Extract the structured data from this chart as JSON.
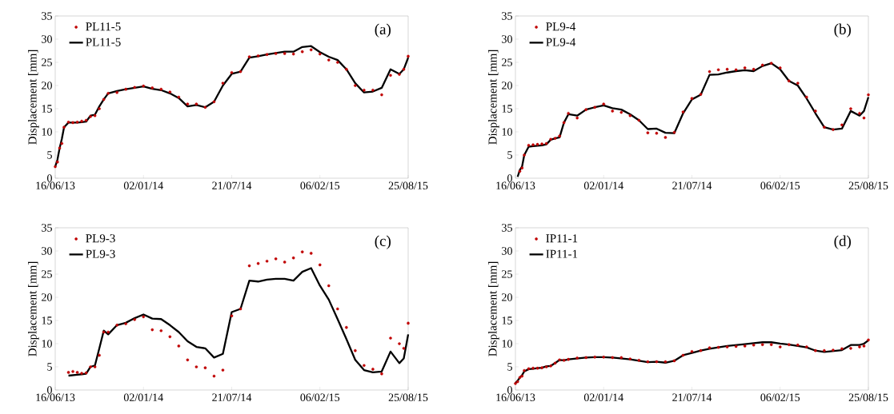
{
  "chart_data": [
    {
      "type": "line",
      "ylabel": "Displacement  [mm]",
      "annotations": [
        "(a)"
      ],
      "legend": "top left",
      "x": [
        "2013-06-16",
        "2013-06-21",
        "2013-06-26",
        "2013-07-01",
        "2013-07-06",
        "2013-07-16",
        "2013-07-26",
        "2013-08-05",
        "2013-08-15",
        "2013-08-25",
        "2013-09-04",
        "2013-09-14",
        "2013-09-24",
        "2013-10-04",
        "2013-10-14",
        "2013-11-03",
        "2013-11-23",
        "2013-12-13",
        "2014-01-02",
        "2014-01-22",
        "2014-02-11",
        "2014-03-03",
        "2014-03-23",
        "2014-04-12",
        "2014-05-02",
        "2014-05-22",
        "2014-06-11",
        "2014-07-01",
        "2014-07-21",
        "2014-08-10",
        "2014-08-30",
        "2014-09-19",
        "2014-10-09",
        "2014-10-29",
        "2014-11-18",
        "2014-12-08",
        "2014-12-28",
        "2015-01-17",
        "2015-02-06",
        "2015-02-26",
        "2015-03-18",
        "2015-04-07",
        "2015-04-27",
        "2015-05-17",
        "2015-06-06",
        "2015-06-26",
        "2015-07-16",
        "2015-08-05",
        "2015-08-15",
        "2015-08-25"
      ],
      "xlim": [
        "2013-06-16",
        "2015-08-25"
      ],
      "xticks": [
        {
          "value": "2013-06-16",
          "label": "16/06/13"
        },
        {
          "value": "2014-01-02",
          "label": "02/01/14"
        },
        {
          "value": "2014-07-21",
          "label": "21/07/14"
        },
        {
          "value": "2015-02-06",
          "label": "06/02/15"
        },
        {
          "value": "2015-08-25",
          "label": "25/08/15"
        }
      ],
      "ylim": [
        0,
        35
      ],
      "yticks": [
        0,
        5,
        10,
        15,
        20,
        25,
        30,
        35
      ],
      "series": [
        {
          "name": "PL11-5",
          "type": "scatter",
          "marker": "circle",
          "color": "#c00000",
          "values": [
            2.5,
            3.5,
            6.5,
            7.5,
            11,
            12.1,
            12,
            12.1,
            12.3,
            12.5,
            13.3,
            13.5,
            15,
            17,
            18.3,
            18.5,
            19.2,
            19.6,
            19.9,
            19.5,
            19.2,
            18.6,
            17.5,
            16,
            16,
            15.3,
            16.5,
            20.5,
            22.8,
            23,
            26.2,
            26.4,
            26.7,
            26.9,
            26.9,
            26.8,
            27.3,
            27.7,
            26.8,
            25.5,
            25,
            23.5,
            20,
            19,
            19,
            18,
            22.2,
            22.4,
            23.5,
            26.3
          ]
        },
        {
          "name": "PL11-5",
          "type": "line",
          "marker": "none",
          "line_style": "solid",
          "color": "#000000",
          "values": [
            2.5,
            4,
            6.5,
            8.5,
            11,
            12,
            12,
            12,
            12.1,
            12.2,
            13.5,
            13.7,
            15.5,
            17,
            18.3,
            18.8,
            19.2,
            19.5,
            19.8,
            19.3,
            19,
            18.3,
            17.3,
            15.5,
            15.8,
            15.3,
            16.5,
            20,
            22.5,
            23,
            26,
            26.3,
            26.7,
            27,
            27.3,
            27.3,
            28.3,
            28.5,
            27.2,
            26.2,
            25.5,
            23.5,
            20.5,
            18.5,
            18.7,
            19.5,
            23.5,
            22.5,
            23.5,
            26
          ]
        }
      ]
    },
    {
      "type": "line",
      "ylabel": "Displacement  [mm]",
      "annotations": [
        "(b)"
      ],
      "legend": "top left",
      "x": [
        "2013-06-21",
        "2013-06-26",
        "2013-07-01",
        "2013-07-06",
        "2013-07-16",
        "2013-07-26",
        "2013-08-05",
        "2013-08-15",
        "2013-08-25",
        "2013-09-04",
        "2013-09-14",
        "2013-09-24",
        "2013-10-04",
        "2013-10-14",
        "2013-11-03",
        "2013-11-23",
        "2013-12-13",
        "2014-01-02",
        "2014-01-22",
        "2014-02-11",
        "2014-03-03",
        "2014-03-23",
        "2014-04-12",
        "2014-05-02",
        "2014-05-22",
        "2014-06-11",
        "2014-07-01",
        "2014-07-21",
        "2014-08-10",
        "2014-08-30",
        "2014-09-19",
        "2014-10-09",
        "2014-10-29",
        "2014-11-18",
        "2014-12-08",
        "2014-12-28",
        "2015-01-17",
        "2015-02-06",
        "2015-02-26",
        "2015-03-18",
        "2015-04-07",
        "2015-04-27",
        "2015-05-17",
        "2015-06-06",
        "2015-06-26",
        "2015-07-16",
        "2015-08-05",
        "2015-08-15",
        "2015-08-25"
      ],
      "xlim": [
        "2013-06-16",
        "2015-08-25"
      ],
      "xticks": [
        {
          "value": "2013-06-16",
          "label": "16/06/13"
        },
        {
          "value": "2014-01-02",
          "label": "02/01/14"
        },
        {
          "value": "2014-07-21",
          "label": "21/07/14"
        },
        {
          "value": "2015-02-06",
          "label": "06/02/15"
        },
        {
          "value": "2015-08-25",
          "label": "25/08/15"
        }
      ],
      "ylim": [
        0,
        35
      ],
      "yticks": [
        0,
        5,
        10,
        15,
        20,
        25,
        30,
        35
      ],
      "series": [
        {
          "name": "PL9-4",
          "type": "scatter",
          "marker": "circle",
          "color": "#c00000",
          "values": [
            null,
            1.5,
            2.2,
            5,
            7.1,
            7.2,
            7.3,
            7.4,
            7.5,
            8.4,
            8.6,
            9.1,
            12,
            14,
            13,
            14.8,
            15.3,
            16,
            14.5,
            14.2,
            13.5,
            12.5,
            9.8,
            9.7,
            8.8,
            9.9,
            14.3,
            17.2,
            18.1,
            23,
            23.4,
            23.5,
            23.4,
            23.8,
            23.5,
            24.4,
            24.8,
            23.8,
            21,
            20.5,
            17.5,
            14.5,
            11,
            10.5,
            11.5,
            15,
            14,
            13,
            18
          ]
        },
        {
          "name": "PL9-4",
          "type": "line",
          "marker": "none",
          "line_style": "solid",
          "color": "#000000",
          "values": [
            0.3,
            1.8,
            2.5,
            5,
            6.8,
            6.9,
            7,
            7.1,
            7.3,
            8.3,
            8.6,
            8.8,
            12,
            13.8,
            13.5,
            14.8,
            15.3,
            15.7,
            15.1,
            14.8,
            13.8,
            12.5,
            10.6,
            10.7,
            9.8,
            9.7,
            14,
            17,
            18,
            22.3,
            22.4,
            22.8,
            23.1,
            23.3,
            23.1,
            24.2,
            24.8,
            23.5,
            21,
            20,
            17.2,
            14,
            11,
            10.5,
            10.7,
            14.5,
            13.5,
            14.5,
            17.5
          ]
        }
      ]
    },
    {
      "type": "line",
      "ylabel": "Displacement  [mm]",
      "annotations": [
        "(c)"
      ],
      "legend": "top left",
      "x": [
        "2013-07-16",
        "2013-07-26",
        "2013-08-05",
        "2013-08-15",
        "2013-08-25",
        "2013-09-04",
        "2013-09-14",
        "2013-09-24",
        "2013-10-04",
        "2013-10-14",
        "2013-11-03",
        "2013-11-23",
        "2013-12-13",
        "2014-01-02",
        "2014-01-22",
        "2014-02-11",
        "2014-03-03",
        "2014-03-23",
        "2014-04-12",
        "2014-05-02",
        "2014-05-22",
        "2014-06-11",
        "2014-07-01",
        "2014-07-21",
        "2014-08-10",
        "2014-08-30",
        "2014-09-19",
        "2014-10-09",
        "2014-10-29",
        "2014-11-18",
        "2014-12-08",
        "2014-12-28",
        "2015-01-17",
        "2015-02-06",
        "2015-02-26",
        "2015-03-18",
        "2015-04-07",
        "2015-04-27",
        "2015-05-17",
        "2015-06-06",
        "2015-06-26",
        "2015-07-16",
        "2015-08-05",
        "2015-08-15",
        "2015-08-25"
      ],
      "xlim": [
        "2013-06-16",
        "2015-08-25"
      ],
      "xticks": [
        {
          "value": "2013-06-16",
          "label": "16/06/13"
        },
        {
          "value": "2014-01-02",
          "label": "02/01/14"
        },
        {
          "value": "2014-07-21",
          "label": "21/07/14"
        },
        {
          "value": "2015-02-06",
          "label": "06/02/15"
        },
        {
          "value": "2015-08-25",
          "label": "25/08/15"
        }
      ],
      "ylim": [
        0,
        35
      ],
      "yticks": [
        0,
        5,
        10,
        15,
        20,
        25,
        30,
        35
      ],
      "series": [
        {
          "name": "PL9-3",
          "type": "scatter",
          "marker": "circle",
          "color": "#c00000",
          "values": [
            3.8,
            4,
            3.8,
            3.6,
            3.7,
            5,
            5,
            7.5,
            12.5,
            12.5,
            14,
            14.3,
            15.2,
            15.8,
            13,
            12.8,
            11.5,
            9.5,
            6.5,
            5,
            4.8,
            3,
            4.3,
            16,
            17.5,
            26.8,
            27.3,
            27.8,
            28.3,
            27.6,
            28.5,
            29.8,
            29.5,
            27,
            22.5,
            17.5,
            13.5,
            8.5,
            5.3,
            4.5,
            3.5,
            11.2,
            10,
            9,
            14.4
          ]
        },
        {
          "name": "PL9-3",
          "type": "line",
          "marker": "none",
          "line_style": "solid",
          "color": "#000000",
          "values": [
            3.1,
            3.2,
            3.3,
            3.4,
            3.5,
            5,
            5.3,
            9,
            12.8,
            12,
            14,
            14.5,
            15.5,
            16.3,
            15.4,
            15.3,
            14,
            12.5,
            10.5,
            9.3,
            9,
            7,
            7.8,
            16.8,
            17.5,
            23.6,
            23.4,
            23.8,
            24,
            24,
            23.6,
            25.5,
            26.3,
            22.5,
            19.5,
            15.3,
            11,
            6.5,
            4.3,
            3.8,
            4,
            8.3,
            5.8,
            6.8,
            12
          ]
        }
      ]
    },
    {
      "type": "line",
      "ylabel": "Displacement  [mm]",
      "annotations": [
        "(d)"
      ],
      "legend": "top left",
      "x": [
        "2013-06-16",
        "2013-06-21",
        "2013-06-26",
        "2013-07-01",
        "2013-07-06",
        "2013-07-16",
        "2013-07-26",
        "2013-08-05",
        "2013-08-15",
        "2013-08-25",
        "2013-09-04",
        "2013-09-14",
        "2013-09-24",
        "2013-10-04",
        "2013-10-14",
        "2013-11-03",
        "2013-11-23",
        "2013-12-13",
        "2014-01-02",
        "2014-01-22",
        "2014-02-11",
        "2014-03-03",
        "2014-03-23",
        "2014-04-12",
        "2014-05-02",
        "2014-05-22",
        "2014-06-11",
        "2014-07-01",
        "2014-07-21",
        "2014-08-10",
        "2014-08-30",
        "2014-09-19",
        "2014-10-09",
        "2014-10-29",
        "2014-11-18",
        "2014-12-08",
        "2014-12-28",
        "2015-01-17",
        "2015-02-06",
        "2015-02-26",
        "2015-03-18",
        "2015-04-07",
        "2015-04-27",
        "2015-05-17",
        "2015-06-06",
        "2015-06-26",
        "2015-07-16",
        "2015-08-05",
        "2015-08-15",
        "2015-08-25"
      ],
      "xlim": [
        "2013-06-16",
        "2015-08-25"
      ],
      "xticks": [
        {
          "value": "2013-06-16",
          "label": "16/06/13"
        },
        {
          "value": "2014-01-02",
          "label": "02/01/14"
        },
        {
          "value": "2014-07-21",
          "label": "21/07/14"
        },
        {
          "value": "2015-02-06",
          "label": "06/02/15"
        },
        {
          "value": "2015-08-25",
          "label": "25/08/15"
        }
      ],
      "ylim": [
        0,
        35
      ],
      "yticks": [
        0,
        5,
        10,
        15,
        20,
        25,
        30,
        35
      ],
      "series": [
        {
          "name": "IP11-1",
          "type": "scatter",
          "marker": "circle",
          "color": "#c00000",
          "values": [
            1.4,
            1.8,
            2.7,
            3,
            4.2,
            4.6,
            4.7,
            4.7,
            4.8,
            5,
            5.2,
            5.8,
            6.5,
            6.4,
            6.6,
            6.9,
            7,
            7.1,
            7.1,
            7,
            7,
            6.7,
            6.4,
            6.1,
            6.1,
            6.1,
            6.3,
            7.5,
            8.3,
            8.5,
            9.1,
            9.2,
            9.3,
            9.4,
            9.5,
            9.7,
            9.8,
            9.8,
            9.3,
            9.8,
            9.7,
            9.3,
            8.5,
            8.5,
            8.6,
            8.9,
            9,
            9.3,
            9.5,
            10.8
          ]
        },
        {
          "name": "IP11-1",
          "type": "line",
          "marker": "none",
          "line_style": "solid",
          "color": "#000000",
          "values": [
            1.5,
            2,
            2.7,
            3.2,
            4,
            4.5,
            4.6,
            4.7,
            4.8,
            5.1,
            5.2,
            5.8,
            6.5,
            6.4,
            6.6,
            6.8,
            7,
            7.1,
            7.1,
            7,
            6.8,
            6.6,
            6.3,
            6,
            6.1,
            5.9,
            6.3,
            7.5,
            8,
            8.5,
            8.9,
            9.2,
            9.5,
            9.7,
            9.9,
            10.1,
            10.3,
            10.3,
            10,
            9.8,
            9.5,
            9.2,
            8.5,
            8.2,
            8.4,
            8.6,
            9.7,
            9.7,
            10,
            10.7
          ]
        }
      ]
    }
  ]
}
